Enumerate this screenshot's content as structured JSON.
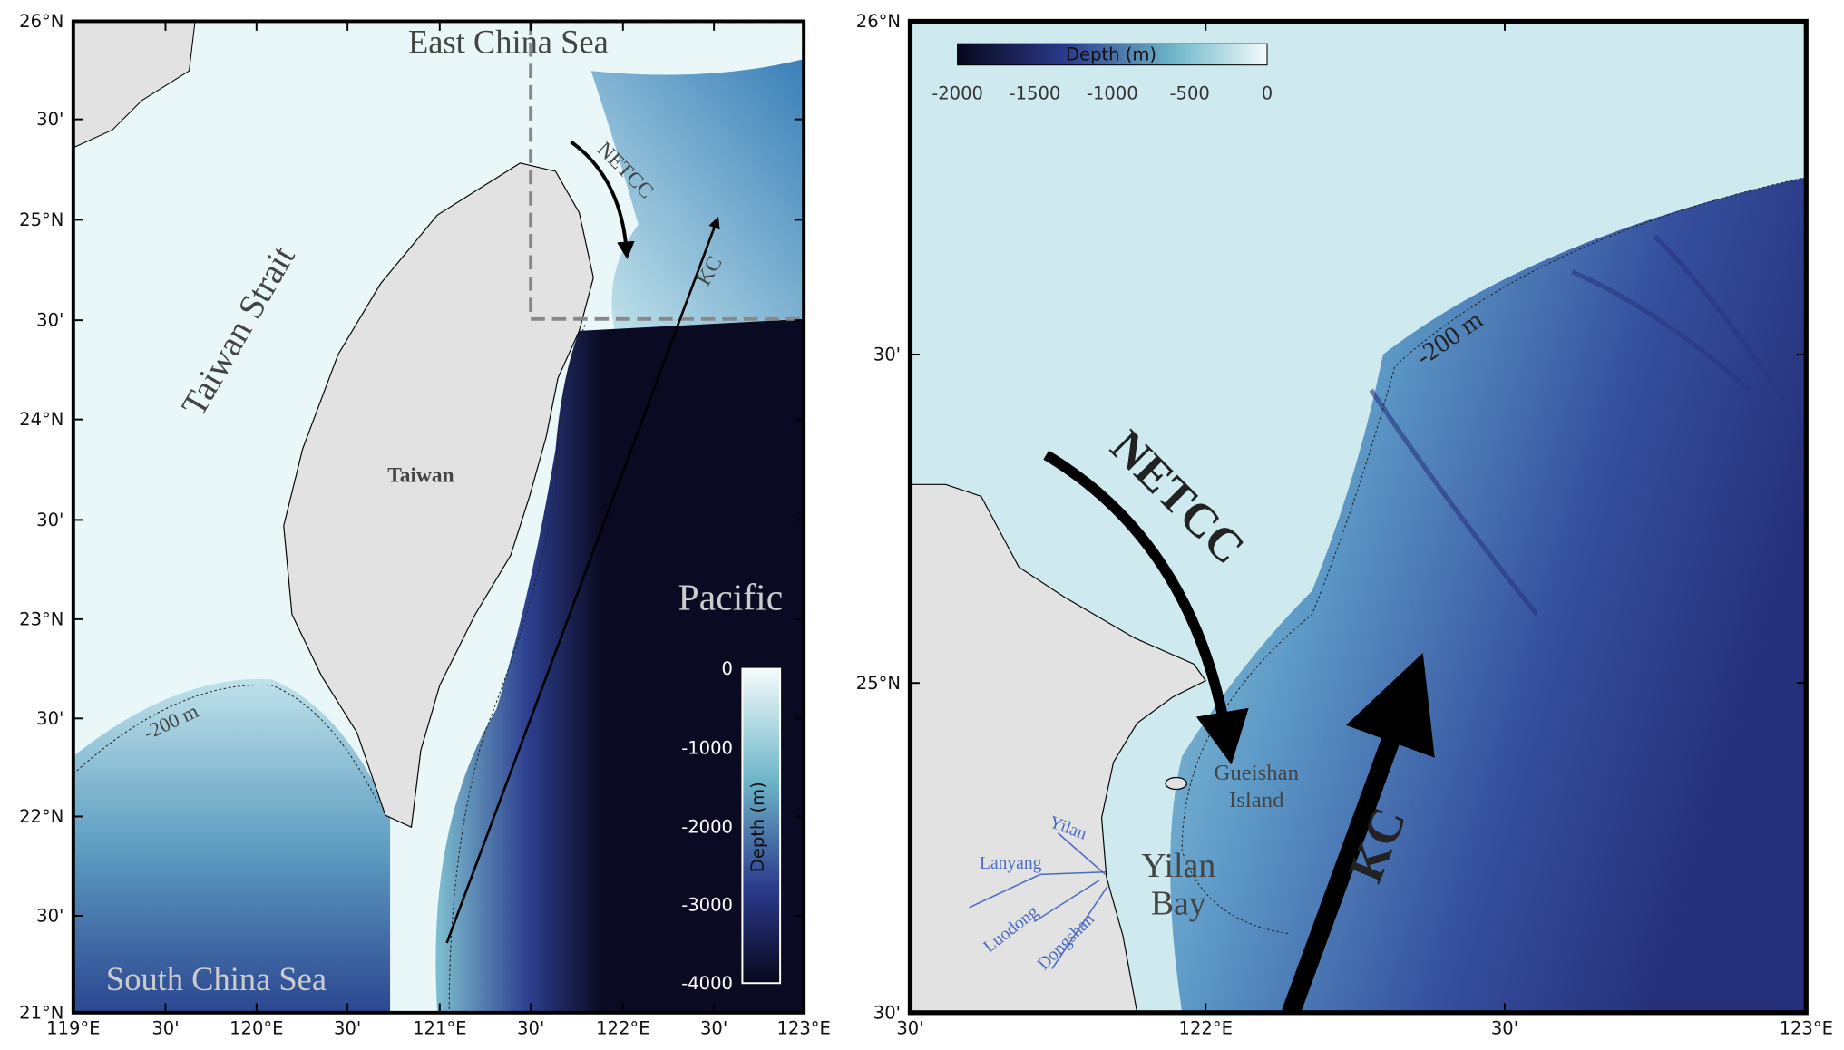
{
  "left_map": {
    "lat_ticks": [
      "26°N",
      "30'",
      "25°N",
      "30'",
      "24°N",
      "30'",
      "23°N",
      "30'",
      "22°N",
      "30'",
      "21°N"
    ],
    "lon_ticks": [
      "119°E",
      "30'",
      "120°E",
      "30'",
      "121°E",
      "30'",
      "122°E",
      "30'",
      "123°E"
    ],
    "place_labels": {
      "east_china_sea": "East China Sea",
      "taiwan_strait": "Taiwan Strait",
      "taiwan": "Taiwan",
      "pacific": "Pacific",
      "south_china_sea": "South China Sea"
    },
    "current_labels": {
      "netcc": "NETCC",
      "kc": "KC"
    },
    "isobath_label": "-200 m",
    "colorbar": {
      "title": "Depth (m)",
      "ticks": [
        "0",
        "-1000",
        "-2000",
        "-3000",
        "-4000"
      ]
    }
  },
  "right_map": {
    "lat_ticks": [
      "26°N",
      "30'",
      "25°N",
      "30'"
    ],
    "lon_ticks": [
      "30'",
      "122°E",
      "30'",
      "123°E"
    ],
    "place_labels": {
      "gueishan_1": "Gueishan",
      "gueishan_2": "Island",
      "yilan_bay_1": "Yilan",
      "yilan_bay_2": "Bay"
    },
    "river_labels": {
      "yilan": "Yilan",
      "lanyang": "Lanyang",
      "luodong": "Luodong",
      "dongshan": "Dongshan"
    },
    "current_labels": {
      "netcc": "NETCC",
      "kc": "KC"
    },
    "isobath_label": "-200 m",
    "colorbar": {
      "title": "Depth (m)",
      "ticks": [
        "-2000",
        "-1500",
        "-1000",
        "-500",
        "0"
      ]
    }
  }
}
